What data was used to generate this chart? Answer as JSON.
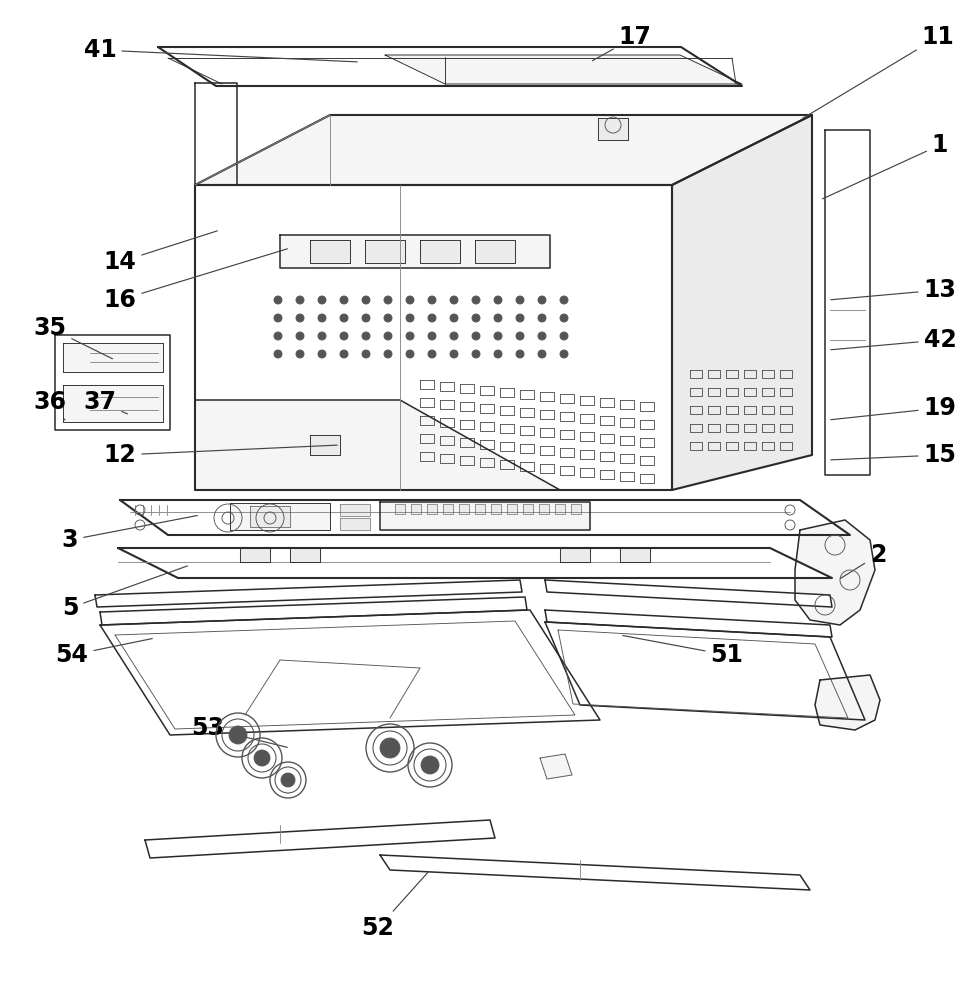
{
  "bg_color": "#ffffff",
  "lc": "#2a2a2a",
  "lc_gray": "#555555",
  "lc_light": "#888888",
  "lw": 1.1,
  "lwt": 0.65,
  "lwk": 1.5,
  "fs": 17,
  "fill_white": "#ffffff",
  "fill_light": "#f5f5f5",
  "fill_mid": "#ebebeb",
  "fill_dark": "#d8d8d8",
  "figw": 9.66,
  "figh": 10.0,
  "dpi": 100
}
